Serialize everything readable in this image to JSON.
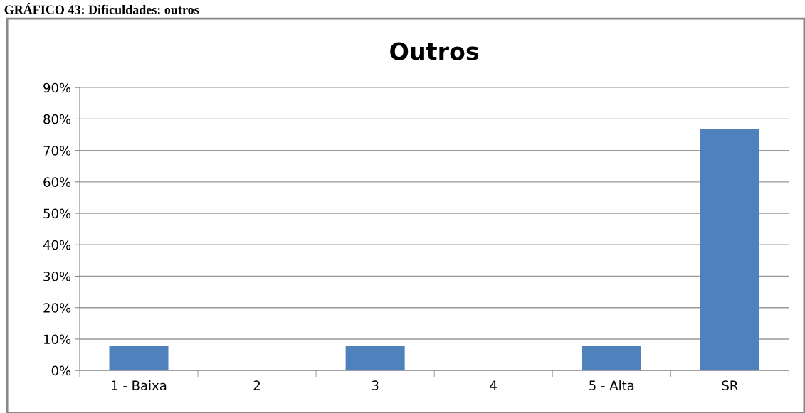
{
  "chart_data": {
    "type": "bar",
    "title": "Outros",
    "annotations": [
      "GRÁFICO 43: Dificuldades: outros"
    ],
    "categories": [
      "1 - Baixa",
      "2",
      "3",
      "4",
      "5 - Alta",
      "SR"
    ],
    "values": [
      7.7,
      0,
      7.7,
      0,
      7.7,
      76.9
    ],
    "color": "#4f81bd",
    "ylim": [
      0,
      90
    ],
    "yticks": [
      {
        "value": 0,
        "label": "0%"
      },
      {
        "value": 10,
        "label": "10%"
      },
      {
        "value": 20,
        "label": "20%"
      },
      {
        "value": 30,
        "label": "30%"
      },
      {
        "value": 40,
        "label": "40%"
      },
      {
        "value": 50,
        "label": "50%"
      },
      {
        "value": 60,
        "label": "60%"
      },
      {
        "value": 70,
        "label": "70%"
      },
      {
        "value": 80,
        "label": "80%"
      },
      {
        "value": 90,
        "label": "90%"
      }
    ],
    "grid": "y",
    "legend": false
  }
}
